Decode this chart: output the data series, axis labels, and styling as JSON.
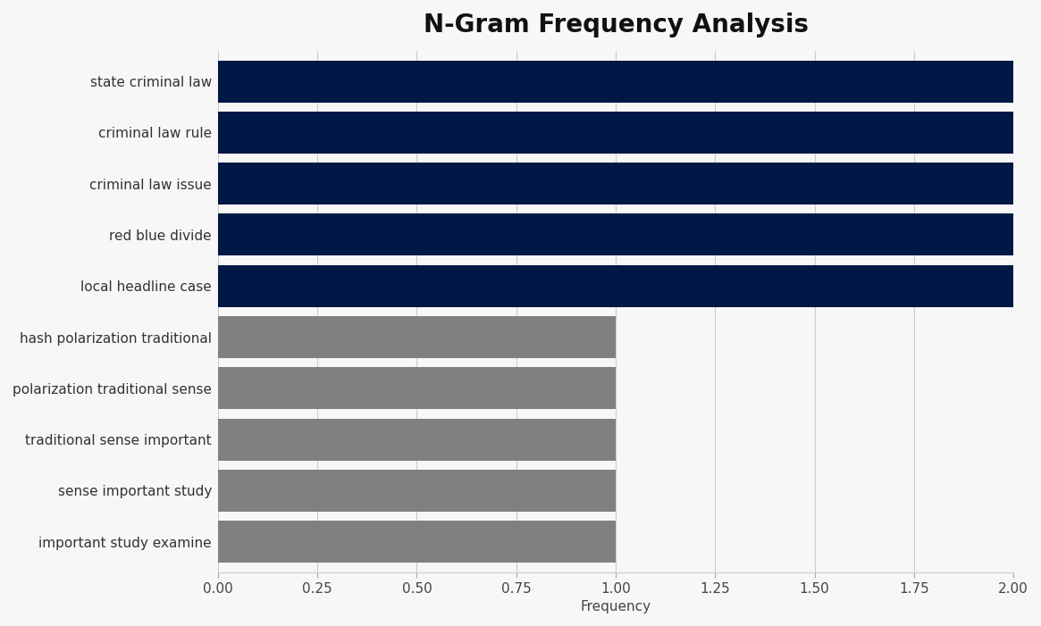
{
  "title": "N-Gram Frequency Analysis",
  "categories": [
    "important study examine",
    "sense important study",
    "traditional sense important",
    "polarization traditional sense",
    "hash polarization traditional",
    "local headline case",
    "red blue divide",
    "criminal law issue",
    "criminal law rule",
    "state criminal law"
  ],
  "values": [
    1,
    1,
    1,
    1,
    1,
    2,
    2,
    2,
    2,
    2
  ],
  "colors": [
    "#808080",
    "#808080",
    "#808080",
    "#808080",
    "#808080",
    "#001845",
    "#001845",
    "#001845",
    "#001845",
    "#001845"
  ],
  "xlabel": "Frequency",
  "xlim": [
    0,
    2.0
  ],
  "xticks": [
    0.0,
    0.25,
    0.5,
    0.75,
    1.0,
    1.25,
    1.5,
    1.75,
    2.0
  ],
  "background_color": "#f7f7f7",
  "plot_bg_color": "#ffffff",
  "title_fontsize": 20,
  "label_fontsize": 11,
  "tick_fontsize": 11,
  "bar_height": 0.82
}
